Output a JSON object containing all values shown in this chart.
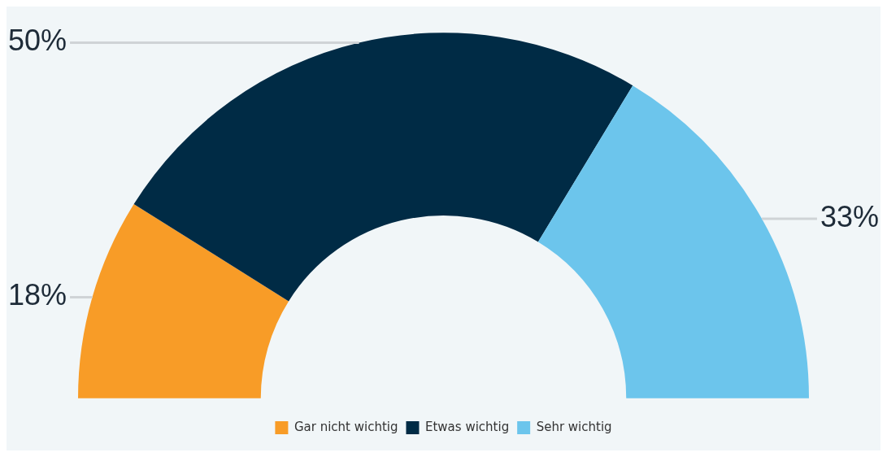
{
  "chart_data": {
    "type": "donut",
    "categories": [
      "Gar nicht wichtig",
      "Etwas wichtig",
      "Sehr wichtig"
    ],
    "values": [
      18,
      50,
      33
    ],
    "colors": [
      "#f89c27",
      "#002b45",
      "#6cc5ec"
    ],
    "value_labels": [
      "18%",
      "50%",
      "33%"
    ],
    "legend": "bottom"
  }
}
